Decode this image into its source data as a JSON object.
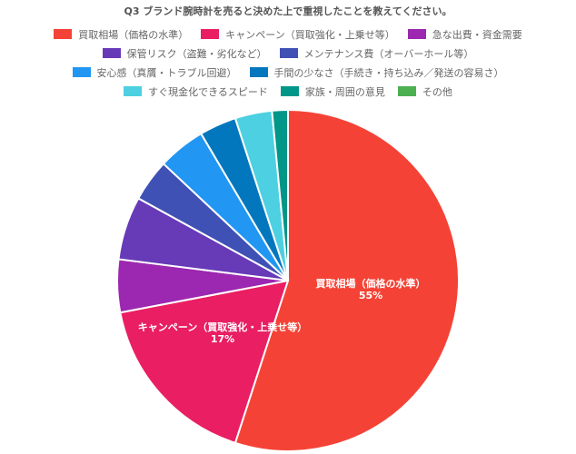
{
  "chart_data": {
    "type": "pie",
    "title": "Q3 ブランド腕時計を売ると決めた上で重視したことを教えてください。",
    "categories": [
      "買取相場（価格の水準）",
      "キャンペーン（買取強化・上乗せ等）",
      "急な出費・資金需要",
      "保管リスク（盗難・劣化など）",
      "メンテナンス費（オーバーホール等）",
      "安心感（真贋・トラブル回避）",
      "手間の少なさ（手続き・持ち込み／発送の容易さ）",
      "すぐ現金化できるスピード",
      "家族・周囲の意見",
      "その他"
    ],
    "values": [
      55,
      17,
      5,
      6,
      4,
      4.5,
      3.5,
      3.5,
      1.5,
      0
    ],
    "colors": [
      "#F44336",
      "#E91E63",
      "#9C27B0",
      "#673AB7",
      "#3F51B5",
      "#2196F3",
      "#0277BD",
      "#4DD0E1",
      "#009688",
      "#4CAF50"
    ],
    "data_labels": [
      {
        "name": "買取相場（価格の水準）",
        "percent": "55%"
      },
      {
        "name": "キャンペーン（買取強化・上乗せ等）",
        "percent": "17%"
      }
    ],
    "legend_position": "top",
    "start_angle": 0,
    "direction": "clockwise"
  },
  "title": "Q3 ブランド腕時計を売ると決めた上で重視したことを教えてください。",
  "legend": {
    "rows": [
      [
        0,
        1,
        2
      ],
      [
        3,
        4
      ],
      [
        5,
        6
      ],
      [
        7,
        8,
        9
      ]
    ]
  }
}
